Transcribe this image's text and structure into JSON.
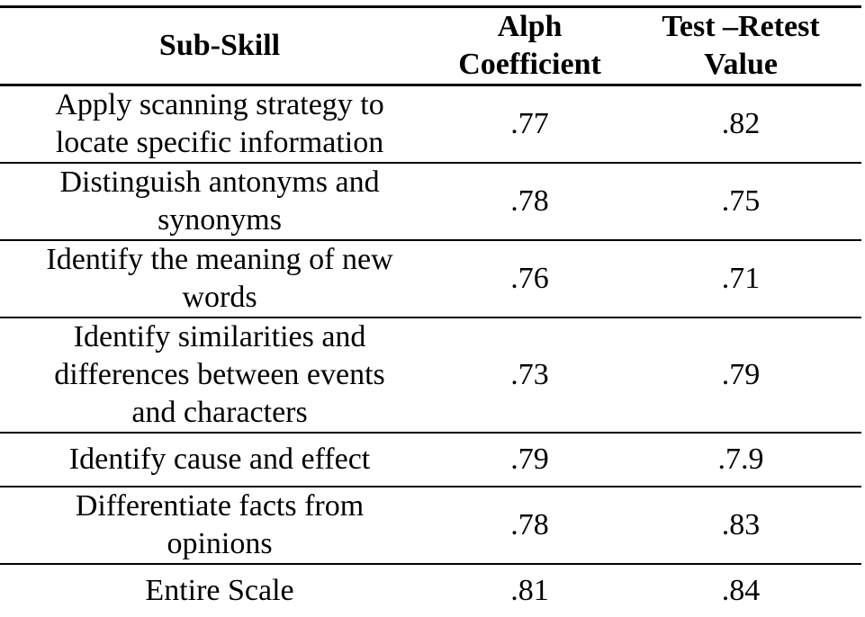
{
  "table": {
    "header": {
      "sub_skill": "Sub-Skill",
      "alpha_coefficient": "Alph\nCoefficient",
      "test_retest": "Test –Retest\nValue"
    },
    "rows": [
      {
        "skill": "Apply scanning strategy to\nlocate specific information",
        "alpha": ".77",
        "retest": ".82"
      },
      {
        "skill": "Distinguish antonyms and\nsynonyms",
        "alpha": ".78",
        "retest": ".75"
      },
      {
        "skill": "Identify the meaning of new\nwords",
        "alpha": ".76",
        "retest": ".71"
      },
      {
        "skill": "Identify similarities and\ndifferences between events\nand characters",
        "alpha": ".73",
        "retest": ".79"
      },
      {
        "skill": "Identify cause and effect",
        "alpha": ".79",
        "retest": ".7.9"
      },
      {
        "skill": "Differentiate facts from\nopinions",
        "alpha": ".78",
        "retest": ".83"
      },
      {
        "skill": "Entire Scale",
        "alpha": ".81",
        "retest": ".84"
      }
    ],
    "colors": {
      "text": "#000000",
      "background": "#ffffff",
      "rule": "#000000"
    }
  }
}
